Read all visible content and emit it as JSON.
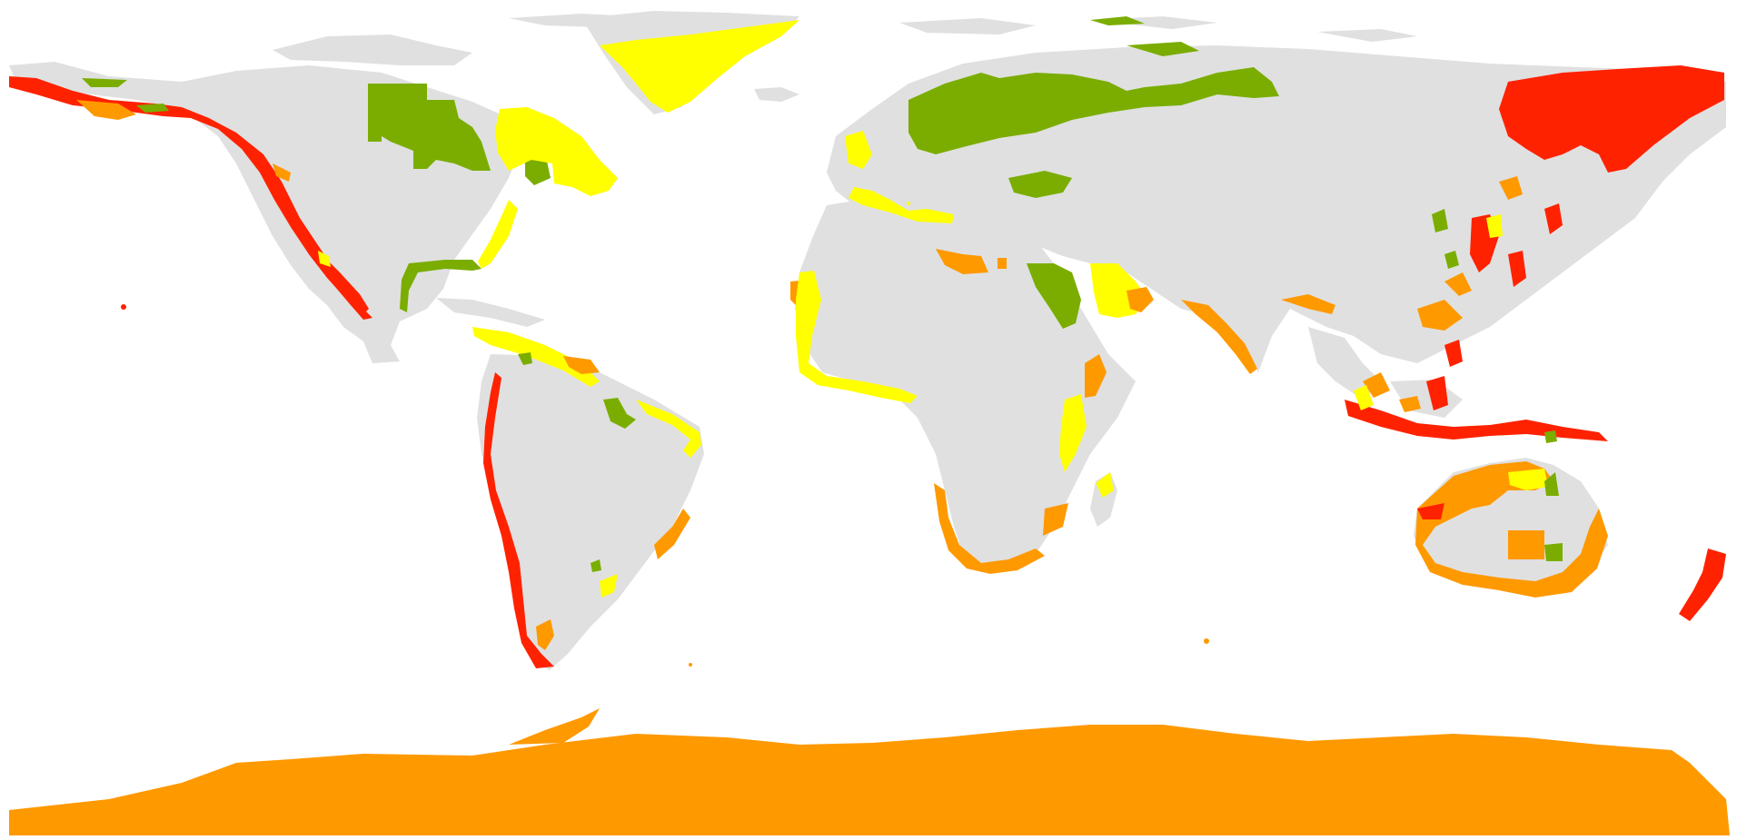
{
  "map": {
    "kind": "world-map-choropleth",
    "projection": "equirectangular",
    "legend": null,
    "title": "",
    "classes": [
      {
        "id": "base",
        "color": "#e0e0e0"
      },
      {
        "id": "class-green",
        "color": "#7aad00"
      },
      {
        "id": "class-yellow",
        "color": "#ffff00"
      },
      {
        "id": "class-orange",
        "color": "#ff9900"
      },
      {
        "id": "class-red",
        "color": "#ff2200"
      }
    ],
    "highlighted_regions": [
      {
        "region": "greenland",
        "class": "class-yellow"
      },
      {
        "region": "canada-interior-north",
        "class": "class-green"
      },
      {
        "region": "quebec-labrador",
        "class": "class-yellow"
      },
      {
        "region": "alaska-coast",
        "class": "class-red"
      },
      {
        "region": "north-america-pacific-coast",
        "class": "class-red"
      },
      {
        "region": "gulf-of-mexico-coast",
        "class": "class-green"
      },
      {
        "region": "south-america-pacific-coast",
        "class": "class-red"
      },
      {
        "region": "patagonia",
        "class": "class-orange"
      },
      {
        "region": "amazon-interior",
        "class": "class-green"
      },
      {
        "region": "scandinavia-russia-north",
        "class": "class-green"
      },
      {
        "region": "kamchatka-siberia-east",
        "class": "class-red"
      },
      {
        "region": "nile-egypt",
        "class": "class-green"
      },
      {
        "region": "arabian-peninsula",
        "class": "class-yellow"
      },
      {
        "region": "west-africa-coast",
        "class": "class-yellow"
      },
      {
        "region": "south-africa-coast",
        "class": "class-orange"
      },
      {
        "region": "madagascar",
        "class": "class-yellow"
      },
      {
        "region": "indonesia-philippines",
        "class": "class-red"
      },
      {
        "region": "australia-coast",
        "class": "class-orange"
      },
      {
        "region": "new-zealand",
        "class": "class-red"
      },
      {
        "region": "antarctica",
        "class": "class-orange"
      }
    ]
  }
}
